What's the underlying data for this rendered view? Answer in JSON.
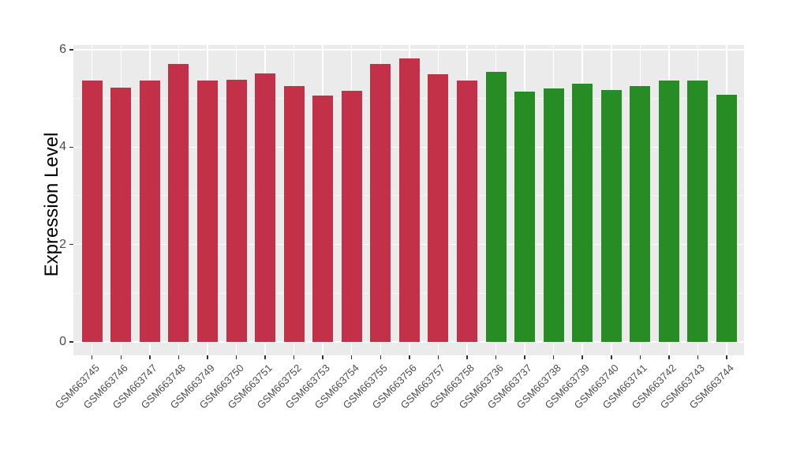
{
  "chart_data": {
    "type": "bar",
    "title": "",
    "xlabel": "",
    "ylabel": "Expression Level",
    "yticks": [
      0,
      2,
      4,
      6
    ],
    "yticks_minor": [
      1,
      3,
      5
    ],
    "ylim": [
      -0.28,
      6.09
    ],
    "grid": true,
    "legend": "none",
    "panel_bg": "#EBEBEB",
    "grid_color": "#FFFFFF",
    "tick_label_color": "#4D4D4D",
    "axis_title_color": "#000000",
    "series": [
      {
        "name": "group-red",
        "color": "#C33149",
        "categories": [
          "GSM663745",
          "GSM663746",
          "GSM663747",
          "GSM663748",
          "GSM663749",
          "GSM663750",
          "GSM663751",
          "GSM663752",
          "GSM663753",
          "GSM663754",
          "GSM663755",
          "GSM663756",
          "GSM663757",
          "GSM663758"
        ],
        "values": [
          5.36,
          5.22,
          5.36,
          5.7,
          5.36,
          5.39,
          5.52,
          5.26,
          5.06,
          5.15,
          5.7,
          5.82,
          5.49,
          5.36
        ]
      },
      {
        "name": "group-green",
        "color": "#278C23",
        "categories": [
          "GSM663736",
          "GSM663737",
          "GSM663738",
          "GSM663739",
          "GSM663740",
          "GSM663741",
          "GSM663742",
          "GSM663743",
          "GSM663744"
        ],
        "values": [
          5.55,
          5.14,
          5.2,
          5.3,
          5.18,
          5.26,
          5.36,
          5.37,
          5.08
        ]
      }
    ]
  }
}
